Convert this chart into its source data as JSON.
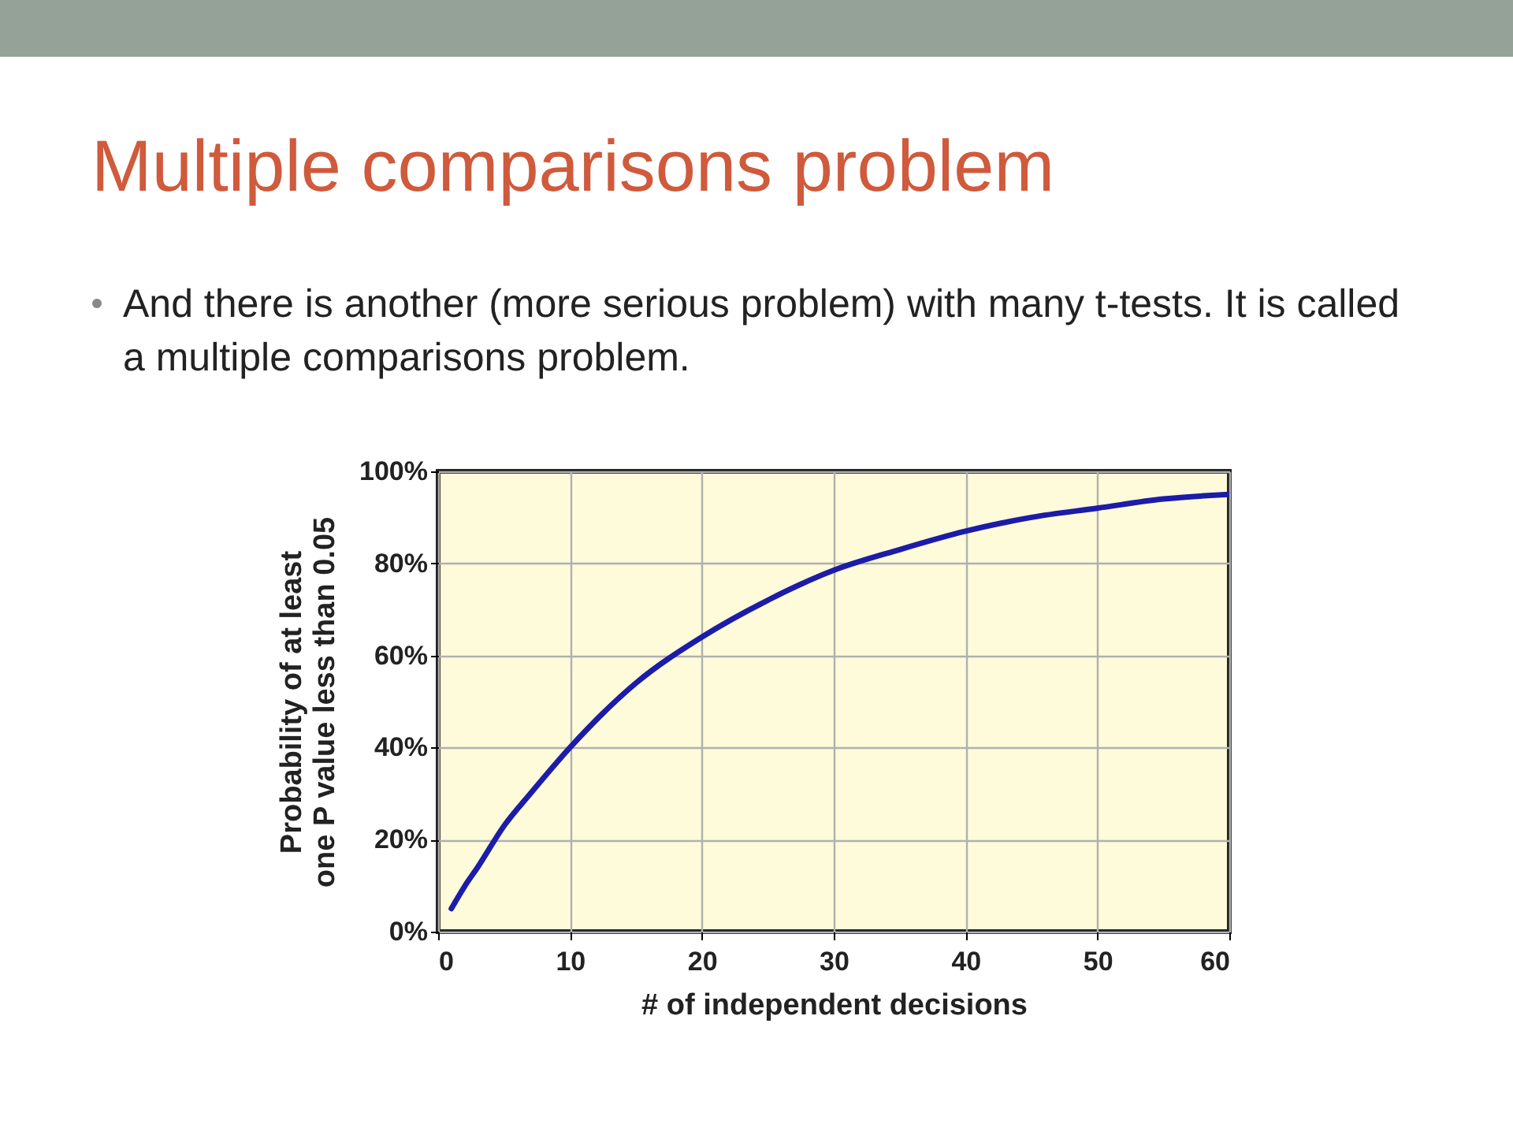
{
  "chart_data": {
    "type": "line",
    "title": "Multiple comparisons problem",
    "subtitle": "And there is another (more serious problem) with many t-tests. It is called a multiple comparisons problem.",
    "xlabel": "# of independent decisions",
    "ylabel": "Probability of at least one P value less than 0.05",
    "x": [
      1,
      2,
      3,
      5,
      7,
      10,
      15,
      20,
      25,
      30,
      35,
      40,
      45,
      50,
      55,
      60
    ],
    "series": [
      {
        "color": "#1c1ca8",
        "values": [
          5,
          9.8,
          14,
          23,
          30,
          40,
          54,
          64,
          72,
          78.5,
          83,
          87,
          90,
          92,
          94,
          95
        ]
      }
    ],
    "xlim": [
      0,
      60
    ],
    "xticks": [
      0,
      10,
      20,
      30,
      40,
      50,
      60
    ],
    "ylim": [
      0,
      100
    ],
    "yticks": [
      {
        "value": 0,
        "label": "0%"
      },
      {
        "value": 20,
        "label": "20%"
      },
      {
        "value": 40,
        "label": "40%"
      },
      {
        "value": 60,
        "label": "60%"
      },
      {
        "value": 80,
        "label": "80%"
      },
      {
        "value": 100,
        "label": "100%"
      }
    ],
    "grid": true,
    "marker": "none",
    "line_style": "solid"
  }
}
